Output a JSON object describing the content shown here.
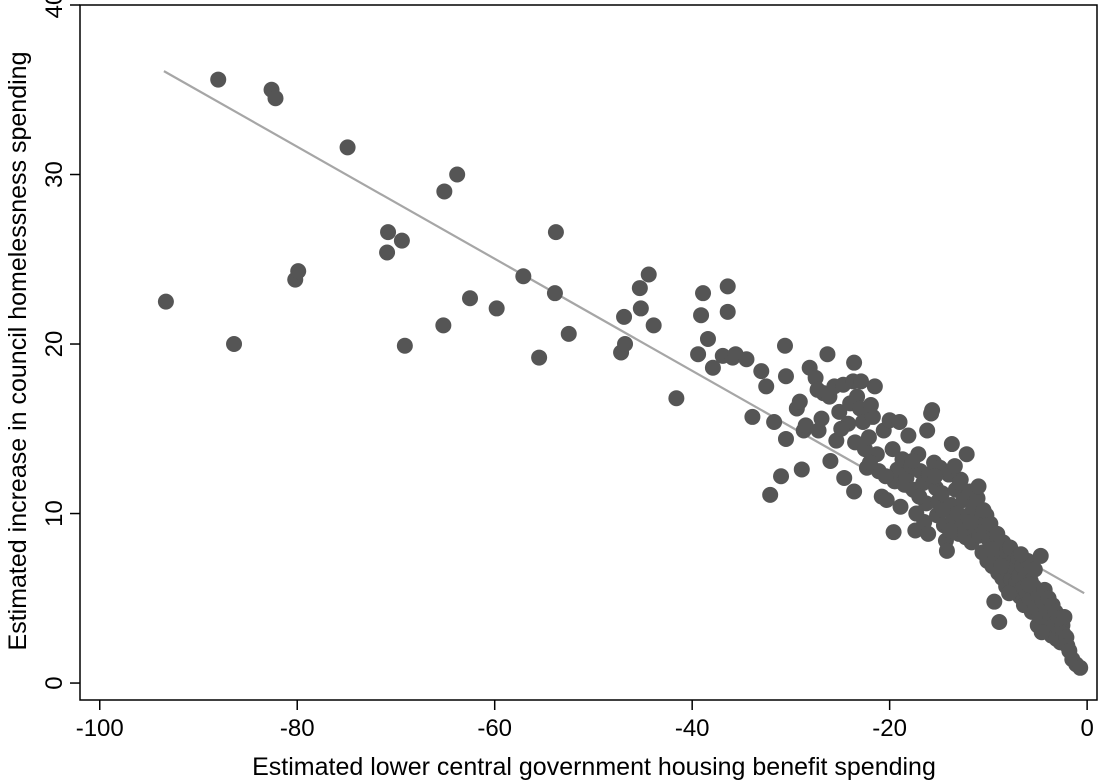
{
  "chart_data": {
    "type": "scatter",
    "title": "",
    "xlabel": "Estimated lower central government housing benefit spending",
    "ylabel": "Estimated increase in council homelessness spending",
    "xlim": [
      -102,
      1
    ],
    "ylim": [
      -1,
      40
    ],
    "xticks": [
      -100,
      -80,
      -60,
      -40,
      -20,
      0
    ],
    "yticks": [
      0,
      10,
      20,
      30,
      40
    ],
    "grid": false,
    "legend": "none",
    "colors": {
      "points": "#555555",
      "fit_line": "#a6a6a6",
      "axis": "#000000"
    },
    "fit_line": {
      "x": [
        -93.5,
        -0.3
      ],
      "y": [
        36.1,
        5.3
      ]
    },
    "points": [
      [
        -93.3,
        22.5
      ],
      [
        -88.0,
        35.6
      ],
      [
        -86.4,
        20.0
      ],
      [
        -82.6,
        35.0
      ],
      [
        -82.2,
        34.5
      ],
      [
        -80.2,
        23.8
      ],
      [
        -79.9,
        24.3
      ],
      [
        -74.9,
        31.6
      ],
      [
        -70.8,
        26.6
      ],
      [
        -70.9,
        25.4
      ],
      [
        -69.4,
        26.1
      ],
      [
        -69.1,
        19.9
      ],
      [
        -65.1,
        29.0
      ],
      [
        -65.2,
        21.1
      ],
      [
        -63.8,
        30.0
      ],
      [
        -62.5,
        22.7
      ],
      [
        -59.8,
        22.1
      ],
      [
        -57.1,
        24.0
      ],
      [
        -55.5,
        19.2
      ],
      [
        -53.8,
        26.6
      ],
      [
        -53.9,
        23.0
      ],
      [
        -52.5,
        20.6
      ],
      [
        -47.2,
        19.5
      ],
      [
        -46.8,
        20.0
      ],
      [
        -46.9,
        21.6
      ],
      [
        -45.3,
        23.3
      ],
      [
        -45.2,
        22.1
      ],
      [
        -44.4,
        24.1
      ],
      [
        -43.9,
        21.1
      ],
      [
        -41.6,
        16.8
      ],
      [
        -39.4,
        19.4
      ],
      [
        -39.1,
        21.7
      ],
      [
        -38.9,
        23.0
      ],
      [
        -38.4,
        20.3
      ],
      [
        -37.9,
        18.6
      ],
      [
        -36.9,
        19.3
      ],
      [
        -36.4,
        23.4
      ],
      [
        -36.4,
        21.9
      ],
      [
        -35.9,
        19.2
      ],
      [
        -35.6,
        19.4
      ],
      [
        -34.5,
        19.1
      ],
      [
        -33.9,
        15.7
      ],
      [
        -33.0,
        18.4
      ],
      [
        -32.5,
        17.5
      ],
      [
        -32.1,
        11.1
      ],
      [
        -31.7,
        15.4
      ],
      [
        -31.0,
        12.2
      ],
      [
        -30.6,
        19.9
      ],
      [
        -30.5,
        18.1
      ],
      [
        -30.5,
        14.4
      ],
      [
        -29.4,
        16.2
      ],
      [
        -29.1,
        16.6
      ],
      [
        -28.9,
        12.6
      ],
      [
        -28.7,
        14.9
      ],
      [
        -28.5,
        15.2
      ],
      [
        -28.1,
        18.6
      ],
      [
        -27.5,
        18.0
      ],
      [
        -27.3,
        17.3
      ],
      [
        -27.2,
        14.9
      ],
      [
        -26.7,
        17.1
      ],
      [
        -26.3,
        19.4
      ],
      [
        -26.1,
        16.9
      ],
      [
        -26.0,
        13.1
      ],
      [
        -25.6,
        17.5
      ],
      [
        -25.4,
        14.3
      ],
      [
        -25.1,
        16.0
      ],
      [
        -24.7,
        17.6
      ],
      [
        -24.6,
        12.1
      ],
      [
        -24.2,
        15.3
      ],
      [
        -24.0,
        16.5
      ],
      [
        -23.7,
        17.8
      ],
      [
        -23.6,
        18.9
      ],
      [
        -23.5,
        14.2
      ],
      [
        -23.6,
        11.3
      ],
      [
        -23.3,
        16.9
      ],
      [
        -23.0,
        16.2
      ],
      [
        -22.9,
        17.8
      ],
      [
        -22.7,
        15.4
      ],
      [
        -22.5,
        13.8
      ],
      [
        -22.3,
        12.7
      ],
      [
        -22.1,
        14.5
      ],
      [
        -21.7,
        15.7
      ],
      [
        -21.5,
        17.5
      ],
      [
        -21.3,
        13.5
      ],
      [
        -21.1,
        12.5
      ],
      [
        -20.8,
        11.0
      ],
      [
        -20.6,
        14.9
      ],
      [
        -20.3,
        10.8
      ],
      [
        -20.0,
        15.5
      ],
      [
        -19.7,
        13.8
      ],
      [
        -19.6,
        8.9
      ],
      [
        -19.5,
        11.9
      ],
      [
        -19.2,
        12.6
      ],
      [
        -19.0,
        15.4
      ],
      [
        -18.7,
        13.2
      ],
      [
        -18.5,
        11.7
      ],
      [
        -18.3,
        12.1
      ],
      [
        -18.1,
        14.6
      ],
      [
        -17.8,
        12.8
      ],
      [
        -17.6,
        11.4
      ],
      [
        -17.4,
        9.0
      ],
      [
        -17.3,
        10.0
      ],
      [
        -17.1,
        13.5
      ],
      [
        -16.9,
        12.5
      ],
      [
        -16.6,
        11.8
      ],
      [
        -16.5,
        9.5
      ],
      [
        -16.3,
        10.6
      ],
      [
        -16.2,
        14.9
      ],
      [
        -16.1,
        8.8
      ],
      [
        -16.0,
        12.3
      ],
      [
        -15.8,
        15.9
      ],
      [
        -15.7,
        16.1
      ],
      [
        -15.5,
        13.0
      ],
      [
        -15.3,
        11.5
      ],
      [
        -15.2,
        9.9
      ],
      [
        -15.1,
        10.7
      ],
      [
        -14.9,
        12.7
      ],
      [
        -14.7,
        11.2
      ],
      [
        -14.5,
        9.3
      ],
      [
        -14.3,
        8.4
      ],
      [
        -14.2,
        7.8
      ],
      [
        -14.0,
        12.3
      ],
      [
        -13.8,
        10.5
      ],
      [
        -13.7,
        14.1
      ],
      [
        -13.5,
        9.7
      ],
      [
        -13.3,
        11.4
      ],
      [
        -13.1,
        10.0
      ],
      [
        -13.0,
        8.8
      ],
      [
        -12.8,
        12.0
      ],
      [
        -12.7,
        9.2
      ],
      [
        -12.5,
        10.8
      ],
      [
        -12.3,
        8.6
      ],
      [
        -12.2,
        13.5
      ],
      [
        -12.0,
        9.9
      ],
      [
        -11.9,
        11.3
      ],
      [
        -11.7,
        8.3
      ],
      [
        -11.5,
        10.4
      ],
      [
        -11.3,
        9.1
      ],
      [
        -11.1,
        10.9
      ],
      [
        -10.9,
        8.7
      ],
      [
        -10.8,
        9.6
      ],
      [
        -10.6,
        7.7
      ],
      [
        -10.4,
        8.9
      ],
      [
        -10.2,
        9.9
      ],
      [
        -10.1,
        7.2
      ],
      [
        -9.9,
        8.4
      ],
      [
        -9.8,
        9.4
      ],
      [
        -9.6,
        6.9
      ],
      [
        -9.5,
        8.1
      ],
      [
        -9.4,
        4.8
      ],
      [
        -9.3,
        7.4
      ],
      [
        -9.1,
        8.8
      ],
      [
        -9.0,
        6.5
      ],
      [
        -8.9,
        3.6
      ],
      [
        -8.8,
        7.8
      ],
      [
        -8.6,
        6.2
      ],
      [
        -8.5,
        8.3
      ],
      [
        -8.4,
        7.0
      ],
      [
        -8.2,
        5.7
      ],
      [
        -8.1,
        7.5
      ],
      [
        -8.0,
        6.6
      ],
      [
        -7.8,
        8.0
      ],
      [
        -7.7,
        6.1
      ],
      [
        -7.6,
        7.1
      ],
      [
        -7.4,
        5.4
      ],
      [
        -7.3,
        6.8
      ],
      [
        -7.2,
        5.9
      ],
      [
        -7.0,
        7.4
      ],
      [
        -6.9,
        6.3
      ],
      [
        -6.8,
        5.1
      ],
      [
        -6.6,
        6.9
      ],
      [
        -6.5,
        5.6
      ],
      [
        -6.4,
        4.6
      ],
      [
        -6.2,
        6.4
      ],
      [
        -6.1,
        5.3
      ],
      [
        -6.0,
        7.2
      ],
      [
        -5.8,
        4.9
      ],
      [
        -5.7,
        6.0
      ],
      [
        -5.6,
        4.2
      ],
      [
        -5.4,
        5.7
      ],
      [
        -5.3,
        6.7
      ],
      [
        -5.2,
        4.5
      ],
      [
        -5.0,
        3.4
      ],
      [
        -4.9,
        5.2
      ],
      [
        -4.8,
        4.0
      ],
      [
        -4.7,
        7.5
      ],
      [
        -4.5,
        4.8
      ],
      [
        -4.4,
        3.7
      ],
      [
        -4.3,
        5.5
      ],
      [
        -4.1,
        4.3
      ],
      [
        -4.0,
        3.1
      ],
      [
        -3.9,
        5.0
      ],
      [
        -3.7,
        3.9
      ],
      [
        -3.6,
        2.8
      ],
      [
        -3.5,
        4.6
      ],
      [
        -3.3,
        3.5
      ],
      [
        -3.2,
        4.2
      ],
      [
        -3.1,
        2.6
      ],
      [
        -2.9,
        3.8
      ],
      [
        -2.8,
        3.1
      ],
      [
        -2.7,
        2.4
      ],
      [
        -2.5,
        3.4
      ],
      [
        -2.4,
        2.9
      ],
      [
        -2.3,
        3.9
      ],
      [
        -2.1,
        2.7
      ],
      [
        -2.0,
        2.2
      ],
      [
        -1.8,
        1.9
      ],
      [
        -1.5,
        1.4
      ],
      [
        -1.1,
        1.1
      ],
      [
        -0.7,
        0.9
      ],
      [
        -20.4,
        12.2
      ],
      [
        -18.9,
        10.4
      ],
      [
        -17.7,
        13.1
      ],
      [
        -15.4,
        12.2
      ],
      [
        -14.6,
        10.2
      ],
      [
        -13.9,
        9.0
      ],
      [
        -12.9,
        11.8
      ],
      [
        -11.8,
        9.5
      ],
      [
        -10.5,
        10.2
      ],
      [
        -9.7,
        7.9
      ],
      [
        -8.7,
        6.9
      ],
      [
        -7.9,
        5.3
      ],
      [
        -6.7,
        7.6
      ],
      [
        -5.9,
        5.8
      ],
      [
        -4.6,
        3.0
      ],
      [
        -26.9,
        15.6
      ],
      [
        -24.9,
        15.0
      ],
      [
        -22.0,
        13.0
      ],
      [
        -21.9,
        16.4
      ],
      [
        -17.0,
        11.0
      ],
      [
        -13.4,
        12.8
      ],
      [
        -11.0,
        11.6
      ]
    ]
  }
}
